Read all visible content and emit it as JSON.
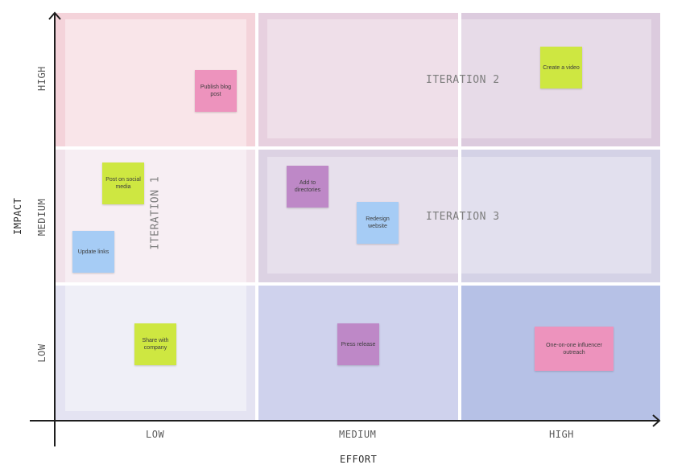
{
  "axes": {
    "x_title": "EFFORT",
    "y_title": "IMPACT",
    "x_ticks": [
      "LOW",
      "MEDIUM",
      "HIGH"
    ],
    "y_ticks": [
      "LOW",
      "MEDIUM",
      "HIGH"
    ]
  },
  "iterations": {
    "one": "ITERATION 1",
    "two": "ITERATION 2",
    "three": "ITERATION 3"
  },
  "stickies": [
    {
      "text": "Publish blog post",
      "effort": "low",
      "impact": "high",
      "color": "#ed93bd"
    },
    {
      "text": "Create a video",
      "effort": "high",
      "impact": "high",
      "color": "#cee741"
    },
    {
      "text": "Post on social media",
      "effort": "low",
      "impact": "medium",
      "color": "#cee741"
    },
    {
      "text": "Update links",
      "effort": "low",
      "impact": "medium",
      "color": "#a6ccf5"
    },
    {
      "text": "Add to directories",
      "effort": "medium",
      "impact": "medium",
      "color": "#be88c7"
    },
    {
      "text": "Redesign website",
      "effort": "medium",
      "impact": "medium",
      "color": "#a6ccf5"
    },
    {
      "text": "Share with company",
      "effort": "low",
      "impact": "low",
      "color": "#cee741"
    },
    {
      "text": "Press release",
      "effort": "medium",
      "impact": "low",
      "color": "#be88c7"
    },
    {
      "text": "One-on-one influencer outreach",
      "effort": "high",
      "impact": "low",
      "color": "#ed93bd"
    }
  ],
  "colors": {
    "cell_low_high": "#f4d3da",
    "cell_med_high": "#e7d0df",
    "cell_high_high": "#dccbde",
    "cell_low_med": "#f1e2ea",
    "cell_med_med": "#dcd2e3",
    "cell_high_med": "#d4d2e6",
    "cell_low_low": "#e4e3f2",
    "cell_med_low": "#cfd2ed",
    "cell_high_low": "#b6c1e6",
    "axis": "#1e1e1e"
  }
}
